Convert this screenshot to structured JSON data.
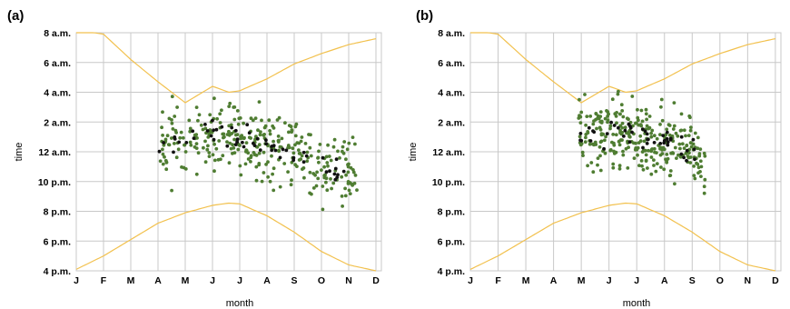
{
  "chart_data": [
    {
      "type": "scatter",
      "panel_label": "(a)",
      "xlabel": "month",
      "ylabel": "time",
      "x_tick_labels": [
        "J",
        "F",
        "M",
        "A",
        "M",
        "J",
        "J",
        "A",
        "S",
        "O",
        "N",
        "D"
      ],
      "y_tick_labels": [
        "4 p.m.",
        "6 p.m.",
        "8 p.m.",
        "10 p.m.",
        "12 a.m.",
        "2 a.m.",
        "4 a.m.",
        "6 a.m.",
        "8 a.m."
      ],
      "ylim": [
        16,
        32
      ],
      "xlim": [
        0,
        11.2
      ],
      "grid": true,
      "colors": {
        "green": "#4f7d32",
        "black": "#111111",
        "curve": "#f2c14e",
        "grid": "#c8c8c8"
      },
      "sunrise_curve": {
        "x": [
          0,
          1,
          2,
          3,
          4,
          5,
          5.6,
          6,
          7,
          8,
          9,
          10,
          11
        ],
        "y": [
          32.2,
          31.9,
          30.2,
          28.7,
          27.3,
          28.4,
          28.0,
          28.1,
          28.9,
          29.9,
          30.6,
          31.2,
          31.6
        ]
      },
      "sunset_curve": {
        "x": [
          0,
          1,
          2,
          3,
          4,
          5,
          5.6,
          6,
          7,
          8,
          9,
          10,
          11
        ],
        "y": [
          16.1,
          17.0,
          18.1,
          19.2,
          19.9,
          20.4,
          20.55,
          20.5,
          19.7,
          18.6,
          17.3,
          16.4,
          16.0
        ]
      },
      "series": [
        {
          "color_key": "green",
          "x_range": [
            3.0,
            10.3
          ],
          "seed": 11,
          "count": 340,
          "dense": true
        },
        {
          "color_key": "black",
          "x_range": [
            3.0,
            10.0
          ],
          "seed": 29,
          "count": 55,
          "dense": false
        }
      ],
      "mean_trend": {
        "x": [
          3,
          4,
          5,
          6,
          7,
          8,
          9,
          10
        ],
        "y": [
          24.0,
          24.9,
          25.2,
          25.0,
          24.3,
          23.7,
          23.0,
          22.6
        ]
      }
    },
    {
      "type": "scatter",
      "panel_label": "(b)",
      "xlabel": "month",
      "ylabel": "time",
      "x_tick_labels": [
        "J",
        "F",
        "M",
        "A",
        "M",
        "J",
        "J",
        "A",
        "S",
        "O",
        "N",
        "D"
      ],
      "y_tick_labels": [
        "4 p.m.",
        "6 p.m.",
        "8 p.m.",
        "10 p.m.",
        "12 a.m.",
        "2 a.m.",
        "4 a.m.",
        "6 a.m.",
        "8 a.m."
      ],
      "ylim": [
        16,
        32
      ],
      "xlim": [
        0,
        11.2
      ],
      "grid": true,
      "colors": {
        "green": "#4f7d32",
        "black": "#111111",
        "curve": "#f2c14e",
        "grid": "#c8c8c8"
      },
      "sunrise_curve": {
        "x": [
          0,
          1,
          2,
          3,
          4,
          5,
          5.6,
          6,
          7,
          8,
          9,
          10,
          11
        ],
        "y": [
          32.2,
          31.9,
          30.2,
          28.7,
          27.3,
          28.4,
          28.0,
          28.1,
          28.9,
          29.9,
          30.6,
          31.2,
          31.6
        ]
      },
      "sunset_curve": {
        "x": [
          0,
          1,
          2,
          3,
          4,
          5,
          5.6,
          6,
          7,
          8,
          9,
          10,
          11
        ],
        "y": [
          16.1,
          17.0,
          18.1,
          19.2,
          19.9,
          20.4,
          20.55,
          20.5,
          19.7,
          18.6,
          17.3,
          16.4,
          16.0
        ]
      },
      "series": [
        {
          "color_key": "green",
          "x_range": [
            3.9,
            8.5
          ],
          "seed": 47,
          "count": 300,
          "dense": true
        },
        {
          "color_key": "black",
          "x_range": [
            3.9,
            8.3
          ],
          "seed": 83,
          "count": 45,
          "dense": false
        }
      ],
      "mean_trend": {
        "x": [
          4,
          5,
          6,
          7,
          8,
          8.5
        ],
        "y": [
          25.2,
          25.4,
          25.0,
          24.6,
          24.2,
          23.2
        ]
      }
    }
  ]
}
